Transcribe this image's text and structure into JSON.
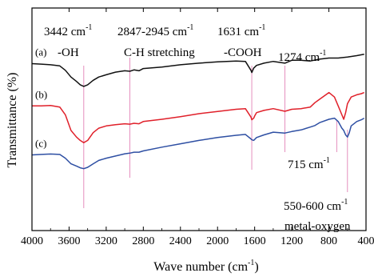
{
  "chart_data": {
    "type": "line",
    "xlabel": "Wave number (cm",
    "xlabel_sup": "-1",
    "xlabel_tail": ")",
    "ylabel": "Transmittance (%)",
    "xlim": [
      4000,
      400
    ],
    "x_ticks": [
      4000,
      3600,
      3200,
      2800,
      2400,
      2000,
      1600,
      1200,
      800,
      400
    ],
    "y_ticks_shown": false,
    "grid": false,
    "series": [
      {
        "name": "(a)",
        "color": "#111111",
        "points": [
          [
            4000,
            0.75
          ],
          [
            3900,
            0.748
          ],
          [
            3800,
            0.745
          ],
          [
            3700,
            0.74
          ],
          [
            3640,
            0.72
          ],
          [
            3580,
            0.69
          ],
          [
            3520,
            0.67
          ],
          [
            3480,
            0.655
          ],
          [
            3442,
            0.648
          ],
          [
            3400,
            0.655
          ],
          [
            3340,
            0.675
          ],
          [
            3280,
            0.69
          ],
          [
            3200,
            0.7
          ],
          [
            3100,
            0.712
          ],
          [
            3000,
            0.718
          ],
          [
            2945,
            0.716
          ],
          [
            2900,
            0.722
          ],
          [
            2847,
            0.718
          ],
          [
            2800,
            0.728
          ],
          [
            2600,
            0.735
          ],
          [
            2400,
            0.745
          ],
          [
            2200,
            0.752
          ],
          [
            2000,
            0.758
          ],
          [
            1800,
            0.762
          ],
          [
            1700,
            0.76
          ],
          [
            1640,
            0.72
          ],
          [
            1631,
            0.71
          ],
          [
            1610,
            0.73
          ],
          [
            1580,
            0.742
          ],
          [
            1500,
            0.752
          ],
          [
            1400,
            0.76
          ],
          [
            1274,
            0.752
          ],
          [
            1200,
            0.765
          ],
          [
            1100,
            0.765
          ],
          [
            1000,
            0.762
          ],
          [
            900,
            0.77
          ],
          [
            800,
            0.775
          ],
          [
            700,
            0.775
          ],
          [
            600,
            0.78
          ],
          [
            500,
            0.786
          ],
          [
            420,
            0.792
          ]
        ]
      },
      {
        "name": "(b)",
        "color": "#e0202a",
        "points": [
          [
            4000,
            0.56
          ],
          [
            3900,
            0.56
          ],
          [
            3800,
            0.562
          ],
          [
            3700,
            0.555
          ],
          [
            3640,
            0.52
          ],
          [
            3580,
            0.45
          ],
          [
            3520,
            0.42
          ],
          [
            3480,
            0.405
          ],
          [
            3442,
            0.395
          ],
          [
            3400,
            0.405
          ],
          [
            3340,
            0.44
          ],
          [
            3280,
            0.46
          ],
          [
            3200,
            0.47
          ],
          [
            3100,
            0.476
          ],
          [
            3000,
            0.48
          ],
          [
            2945,
            0.478
          ],
          [
            2900,
            0.482
          ],
          [
            2847,
            0.48
          ],
          [
            2800,
            0.49
          ],
          [
            2600,
            0.5
          ],
          [
            2400,
            0.512
          ],
          [
            2200,
            0.525
          ],
          [
            2000,
            0.535
          ],
          [
            1800,
            0.545
          ],
          [
            1700,
            0.548
          ],
          [
            1640,
            0.51
          ],
          [
            1631,
            0.498
          ],
          [
            1610,
            0.505
          ],
          [
            1600,
            0.515
          ],
          [
            1580,
            0.53
          ],
          [
            1500,
            0.54
          ],
          [
            1400,
            0.548
          ],
          [
            1274,
            0.536
          ],
          [
            1200,
            0.545
          ],
          [
            1100,
            0.548
          ],
          [
            1000,
            0.555
          ],
          [
            950,
            0.575
          ],
          [
            900,
            0.59
          ],
          [
            800,
            0.62
          ],
          [
            740,
            0.6
          ],
          [
            700,
            0.56
          ],
          [
            660,
            0.52
          ],
          [
            640,
            0.5
          ],
          [
            620,
            0.53
          ],
          [
            600,
            0.57
          ],
          [
            560,
            0.6
          ],
          [
            500,
            0.61
          ],
          [
            450,
            0.615
          ],
          [
            420,
            0.62
          ]
        ]
      },
      {
        "name": "(c)",
        "color": "#2e4fa3",
        "points": [
          [
            4000,
            0.34
          ],
          [
            3900,
            0.342
          ],
          [
            3800,
            0.344
          ],
          [
            3700,
            0.342
          ],
          [
            3640,
            0.325
          ],
          [
            3580,
            0.3
          ],
          [
            3520,
            0.29
          ],
          [
            3480,
            0.282
          ],
          [
            3442,
            0.278
          ],
          [
            3400,
            0.284
          ],
          [
            3340,
            0.3
          ],
          [
            3280,
            0.315
          ],
          [
            3200,
            0.325
          ],
          [
            3100,
            0.335
          ],
          [
            3000,
            0.345
          ],
          [
            2945,
            0.348
          ],
          [
            2900,
            0.352
          ],
          [
            2847,
            0.352
          ],
          [
            2800,
            0.358
          ],
          [
            2600,
            0.375
          ],
          [
            2400,
            0.39
          ],
          [
            2200,
            0.405
          ],
          [
            2000,
            0.418
          ],
          [
            1800,
            0.428
          ],
          [
            1700,
            0.432
          ],
          [
            1640,
            0.412
          ],
          [
            1631,
            0.408
          ],
          [
            1610,
            0.405
          ],
          [
            1580,
            0.418
          ],
          [
            1500,
            0.43
          ],
          [
            1400,
            0.442
          ],
          [
            1274,
            0.438
          ],
          [
            1200,
            0.445
          ],
          [
            1100,
            0.452
          ],
          [
            1000,
            0.465
          ],
          [
            950,
            0.472
          ],
          [
            900,
            0.485
          ],
          [
            800,
            0.5
          ],
          [
            740,
            0.505
          ],
          [
            700,
            0.49
          ],
          [
            660,
            0.46
          ],
          [
            640,
            0.45
          ],
          [
            620,
            0.43
          ],
          [
            600,
            0.42
          ],
          [
            580,
            0.44
          ],
          [
            560,
            0.47
          ],
          [
            500,
            0.49
          ],
          [
            450,
            0.498
          ],
          [
            420,
            0.505
          ]
        ]
      }
    ],
    "reference_lines": [
      3442,
      2945,
      1631,
      1274,
      715,
      600
    ],
    "annotations": [
      {
        "id": "oh_wn",
        "text": "3442 cm",
        "sup": "-1"
      },
      {
        "id": "oh_group",
        "text": "-OH"
      },
      {
        "id": "ch_wn",
        "text": "2847-2945 cm",
        "sup": "-1"
      },
      {
        "id": "ch_group",
        "text": "C-H stretching"
      },
      {
        "id": "cooh_wn",
        "text": "1631 cm",
        "sup": "-1"
      },
      {
        "id": "cooh_group",
        "text": "-COOH"
      },
      {
        "id": "p1274",
        "text": "1274 cm",
        "sup": "-1"
      },
      {
        "id": "p715",
        "text": "715 cm",
        "sup": "-1"
      },
      {
        "id": "mo_wn",
        "text": "550-600 cm",
        "sup": "-1"
      },
      {
        "id": "mo_group",
        "text": "metal-oxygen"
      }
    ]
  }
}
